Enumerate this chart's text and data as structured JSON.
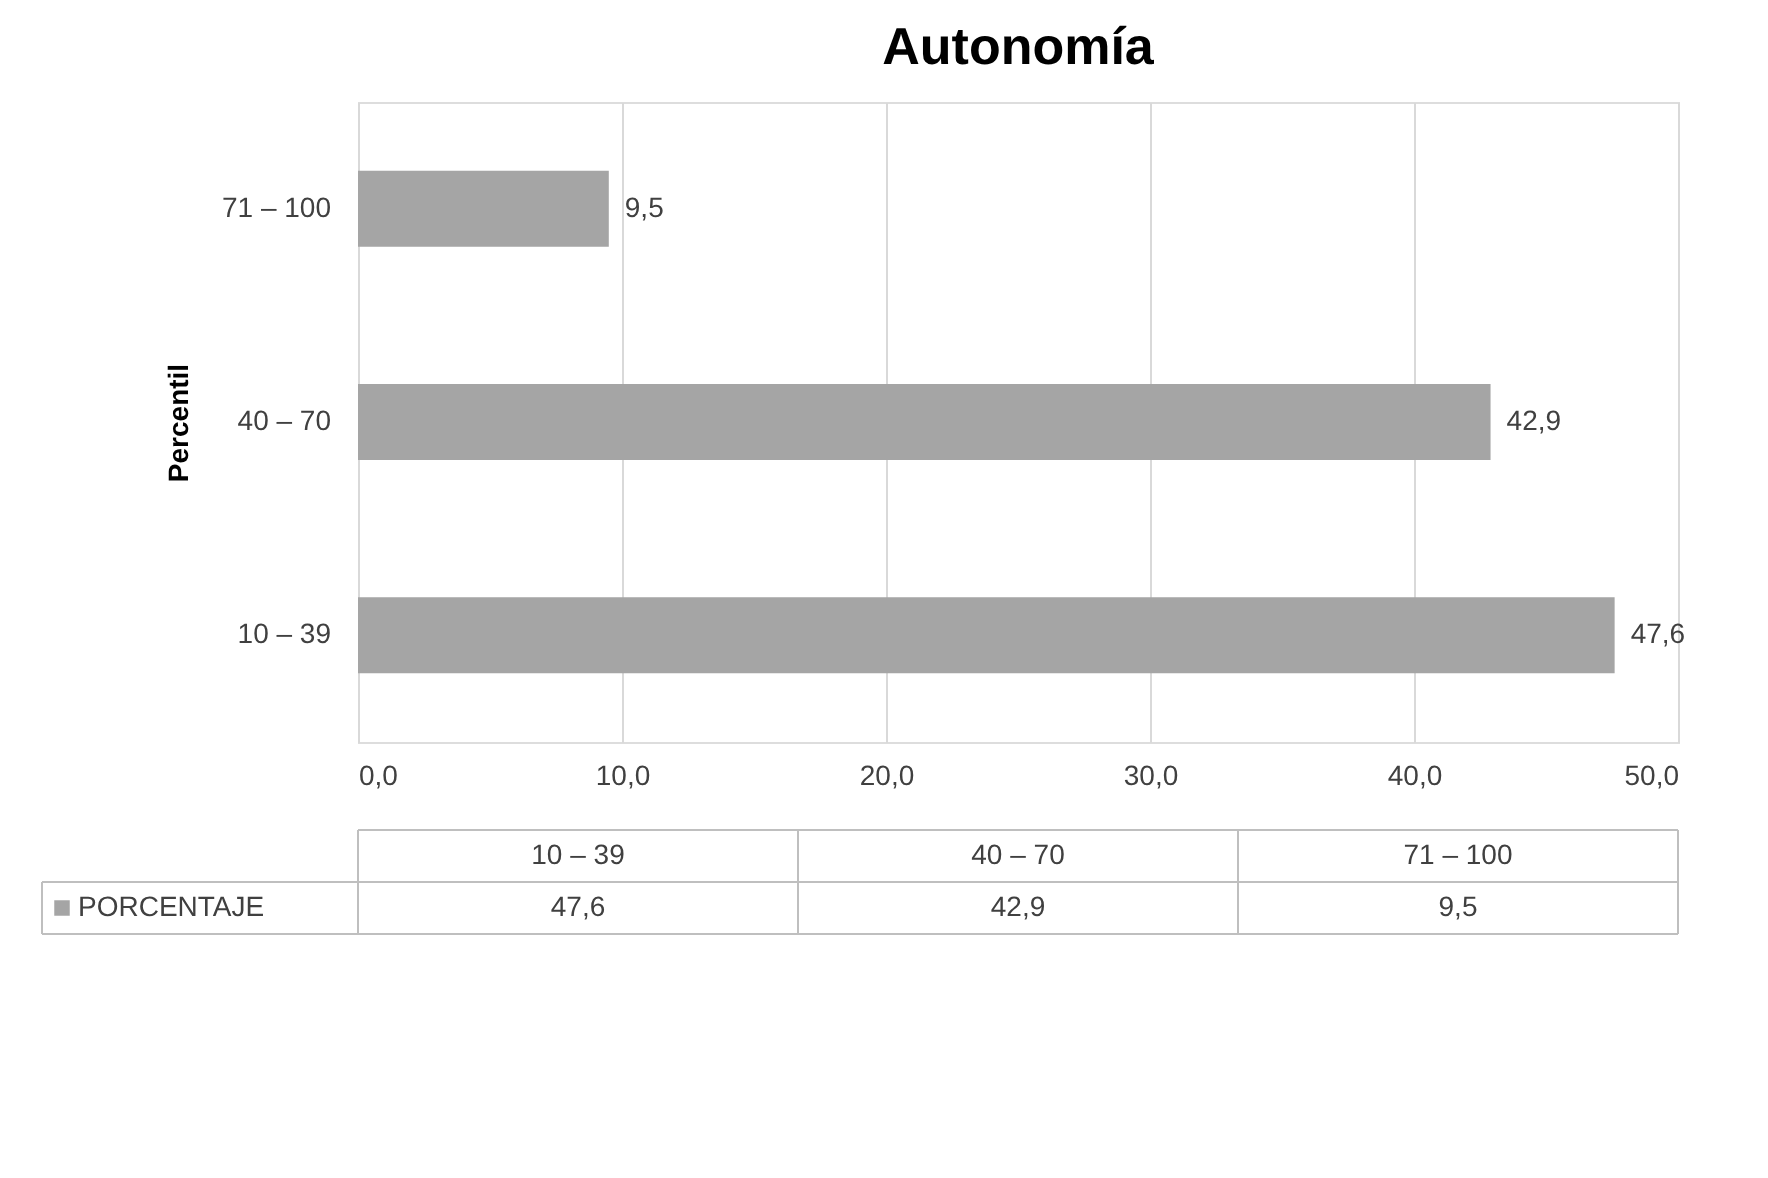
{
  "chart_data": {
    "type": "bar",
    "orientation": "horizontal",
    "title": "Autonomía",
    "ylabel": "Percentil",
    "categories": [
      "71 – 100",
      "40 – 70",
      "10 – 39"
    ],
    "series": [
      {
        "name": "PORCENTAJE",
        "color": "#a5a5a5",
        "values": [
          9.5,
          42.9,
          47.6
        ],
        "value_labels": [
          "9,5",
          "42,9",
          "47,6"
        ]
      }
    ],
    "xlim": [
      0,
      50
    ],
    "xticks": [
      {
        "value": 0,
        "label": "0,0"
      },
      {
        "value": 10,
        "label": "10,0"
      },
      {
        "value": 20,
        "label": "20,0"
      },
      {
        "value": 30,
        "label": "30,0"
      },
      {
        "value": 40,
        "label": "40,0"
      },
      {
        "value": 50,
        "label": "50,0"
      }
    ],
    "grid": "x"
  }
}
